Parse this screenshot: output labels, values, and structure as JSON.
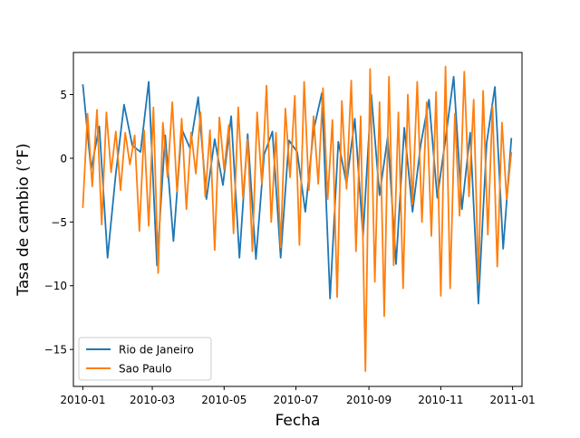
{
  "chart_data": {
    "type": "line",
    "xlabel": "Fecha",
    "ylabel": "Tasa de cambio (°F)",
    "x_range": [
      "2009-12-24",
      "2011-01-09"
    ],
    "ylim": [
      -17.9,
      8.3
    ],
    "x_ticks": [
      "2010-01",
      "2010-03",
      "2010-05",
      "2010-07",
      "2010-09",
      "2010-11",
      "2011-01"
    ],
    "y_ticks": [
      5,
      0,
      -5,
      -10,
      -15
    ],
    "y_tick_labels": [
      "5",
      "0",
      "−5",
      "−10",
      "−15"
    ],
    "grid": false,
    "legend_position": "lower-left",
    "series": [
      {
        "name": "Rio de Janeiro",
        "color": "#1f77b4",
        "x": [
          "2010-01-01",
          "2010-01-08",
          "2010-01-15",
          "2010-01-22",
          "2010-01-29",
          "2010-02-05",
          "2010-02-12",
          "2010-02-19",
          "2010-02-26",
          "2010-03-05",
          "2010-03-12",
          "2010-03-19",
          "2010-03-26",
          "2010-04-02",
          "2010-04-09",
          "2010-04-16",
          "2010-04-23",
          "2010-04-30",
          "2010-05-07",
          "2010-05-14",
          "2010-05-21",
          "2010-05-28",
          "2010-06-04",
          "2010-06-11",
          "2010-06-18",
          "2010-06-25",
          "2010-07-02",
          "2010-07-09",
          "2010-07-16",
          "2010-07-23",
          "2010-07-30",
          "2010-08-06",
          "2010-08-13",
          "2010-08-20",
          "2010-08-27",
          "2010-09-03",
          "2010-09-10",
          "2010-09-17",
          "2010-09-24",
          "2010-10-01",
          "2010-10-08",
          "2010-10-15",
          "2010-10-22",
          "2010-10-29",
          "2010-11-05",
          "2010-11-12",
          "2010-11-19",
          "2010-11-26",
          "2010-12-03",
          "2010-12-10",
          "2010-12-17",
          "2010-12-24",
          "2010-12-31"
        ],
        "values": [
          5.8,
          -0.9,
          2.5,
          -7.8,
          -1.2,
          4.2,
          1.0,
          0.5,
          6.0,
          -8.4,
          1.8,
          -6.5,
          2.3,
          0.8,
          4.8,
          -3.2,
          1.5,
          -2.1,
          3.3,
          -7.8,
          1.9,
          -7.9,
          0.3,
          2.1,
          -7.8,
          1.4,
          0.5,
          -4.2,
          2.2,
          5.1,
          -11.0,
          1.3,
          -2.0,
          3.1,
          -6.1,
          5.0,
          -2.9,
          1.7,
          -8.3,
          2.4,
          -4.2,
          1.1,
          4.6,
          -3.1,
          1.5,
          6.4,
          -4.0,
          2.0,
          -11.4,
          1.2,
          5.6,
          -7.1,
          1.6
        ]
      },
      {
        "name": "Sao Paulo",
        "color": "#ff7f0e",
        "x": [
          "2010-01-01",
          "2010-01-05",
          "2010-01-09",
          "2010-01-13",
          "2010-01-17",
          "2010-01-21",
          "2010-01-25",
          "2010-01-29",
          "2010-02-02",
          "2010-02-06",
          "2010-02-10",
          "2010-02-14",
          "2010-02-18",
          "2010-02-22",
          "2010-02-26",
          "2010-03-02",
          "2010-03-06",
          "2010-03-10",
          "2010-03-14",
          "2010-03-18",
          "2010-03-22",
          "2010-03-26",
          "2010-03-30",
          "2010-04-03",
          "2010-04-07",
          "2010-04-11",
          "2010-04-15",
          "2010-04-19",
          "2010-04-23",
          "2010-04-27",
          "2010-05-01",
          "2010-05-05",
          "2010-05-09",
          "2010-05-13",
          "2010-05-17",
          "2010-05-21",
          "2010-05-25",
          "2010-05-29",
          "2010-06-02",
          "2010-06-06",
          "2010-06-10",
          "2010-06-14",
          "2010-06-18",
          "2010-06-22",
          "2010-06-26",
          "2010-06-30",
          "2010-07-04",
          "2010-07-08",
          "2010-07-12",
          "2010-07-16",
          "2010-07-20",
          "2010-07-24",
          "2010-07-28",
          "2010-08-01",
          "2010-08-05",
          "2010-08-09",
          "2010-08-13",
          "2010-08-17",
          "2010-08-21",
          "2010-08-25",
          "2010-08-29",
          "2010-09-02",
          "2010-09-06",
          "2010-09-10",
          "2010-09-14",
          "2010-09-18",
          "2010-09-22",
          "2010-09-26",
          "2010-09-30",
          "2010-10-04",
          "2010-10-08",
          "2010-10-12",
          "2010-10-16",
          "2010-10-20",
          "2010-10-24",
          "2010-10-28",
          "2010-11-01",
          "2010-11-05",
          "2010-11-09",
          "2010-11-13",
          "2010-11-17",
          "2010-11-21",
          "2010-11-25",
          "2010-11-29",
          "2010-12-03",
          "2010-12-07",
          "2010-12-11",
          "2010-12-15",
          "2010-12-19",
          "2010-12-23",
          "2010-12-27",
          "2010-12-31"
        ],
        "values": [
          -3.9,
          3.5,
          -2.2,
          3.8,
          -5.2,
          3.6,
          -1.1,
          2.1,
          -2.5,
          2.0,
          -0.5,
          1.8,
          -5.7,
          2.2,
          -5.3,
          4.0,
          -9.0,
          2.8,
          -1.5,
          4.4,
          -2.6,
          3.1,
          -4.0,
          2.0,
          -1.2,
          3.6,
          -3.0,
          2.2,
          -7.2,
          3.2,
          -0.9,
          2.6,
          -5.9,
          4.0,
          -3.1,
          1.5,
          -7.3,
          3.6,
          -2.0,
          5.7,
          -5.0,
          2.0,
          -7.0,
          3.9,
          -1.5,
          4.9,
          -6.8,
          6.0,
          -2.5,
          3.3,
          -2.0,
          5.5,
          -3.2,
          3.0,
          -10.9,
          4.5,
          -2.4,
          6.1,
          -7.3,
          3.3,
          -16.7,
          7.0,
          -9.7,
          4.4,
          -12.4,
          6.4,
          -8.4,
          3.6,
          -10.2,
          5.0,
          -3.6,
          6.0,
          -5.0,
          4.4,
          -6.1,
          5.2,
          -10.8,
          7.2,
          -10.2,
          3.5,
          -4.5,
          6.8,
          -3.0,
          4.6,
          -9.6,
          5.3,
          -6.0,
          4.1,
          -8.5,
          2.8,
          -3.2,
          0.5
        ]
      }
    ]
  }
}
